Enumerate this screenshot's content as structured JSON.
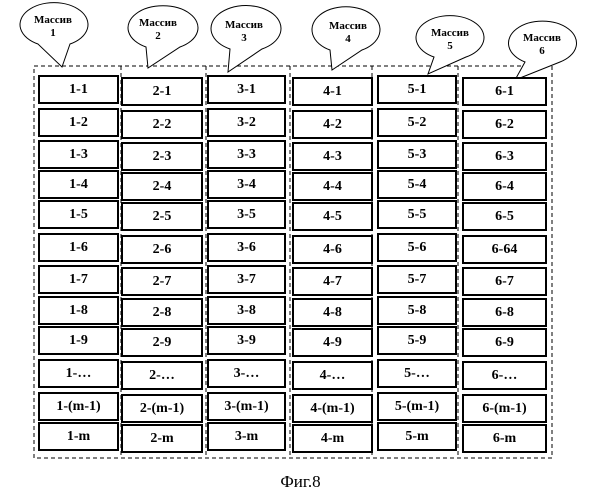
{
  "callouts": [
    {
      "label": "Массив",
      "number": "1"
    },
    {
      "label": "Массив",
      "number": "2"
    },
    {
      "label": "Массив",
      "number": "3"
    },
    {
      "label": "Массив",
      "number": "4"
    },
    {
      "label": "Массив",
      "number": "5"
    },
    {
      "label": "Массив",
      "number": "6"
    }
  ],
  "columns": [
    [
      "1-1",
      "1-2",
      "1-3",
      "1-4",
      "1-5",
      "1-6",
      "1-7",
      "1-8",
      "1-9",
      "1-…",
      "1-(m-1)",
      "1-m"
    ],
    [
      "2-1",
      "2-2",
      "2-3",
      "2-4",
      "2-5",
      "2-6",
      "2-7",
      "2-8",
      "2-9",
      "2-…",
      "2-(m-1)",
      "2-m"
    ],
    [
      "3-1",
      "3-2",
      "3-3",
      "3-4",
      "3-5",
      "3-6",
      "3-7",
      "3-8",
      "3-9",
      "3-…",
      "3-(m-1)",
      "3-m"
    ],
    [
      "4-1",
      "4-2",
      "4-3",
      "4-4",
      "4-5",
      "4-6",
      "4-7",
      "4-8",
      "4-9",
      "4-…",
      "4-(m-1)",
      "4-m"
    ],
    [
      "5-1",
      "5-2",
      "5-3",
      "5-4",
      "5-5",
      "5-6",
      "5-7",
      "5-8",
      "5-9",
      "5-…",
      "5-(m-1)",
      "5-m"
    ],
    [
      "6-1",
      "6-2",
      "6-3",
      "6-4",
      "6-5",
      "6-64",
      "6-7",
      "6-8",
      "6-9",
      "6-…",
      "6-(m-1)",
      "6-m"
    ]
  ],
  "caption": "Фиг.8"
}
